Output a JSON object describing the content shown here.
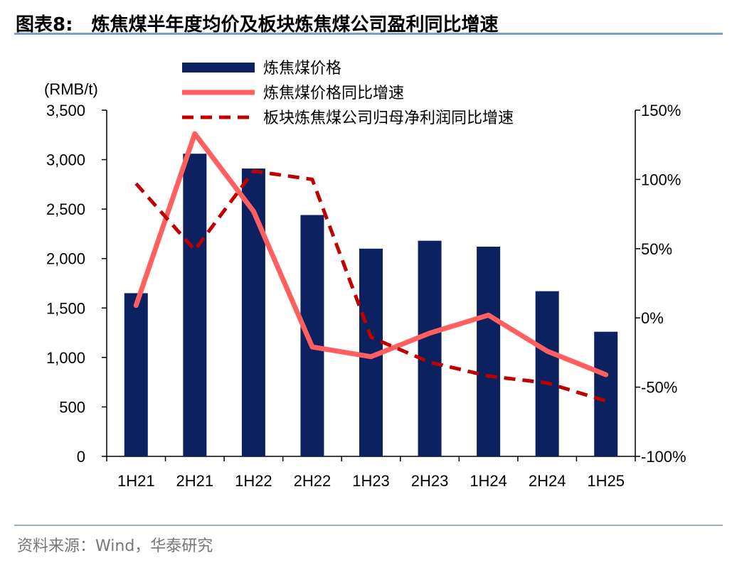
{
  "header": {
    "figure_no": "图表8:",
    "title": "炼焦煤半年度均价及板块炼焦煤公司盈利同比增速"
  },
  "footer": {
    "source": "资料来源：Wind，华泰研究"
  },
  "colors": {
    "bar": "#0b2160",
    "price_yoy": "#ff5f5f",
    "profit_yoy": "#c00000",
    "rule": "#7f9ec4"
  },
  "chart_data": {
    "type": "bar",
    "categories": [
      "1H21",
      "2H21",
      "1H22",
      "2H22",
      "1H23",
      "2H23",
      "1H24",
      "2H24",
      "1H25"
    ],
    "left_axis": {
      "label": "(RMB/t)",
      "ylim": [
        0,
        3500
      ],
      "ticks": [
        "0",
        "500",
        "1,000",
        "1,500",
        "2,000",
        "2,500",
        "3,000",
        "3,500"
      ],
      "tick_values": [
        0,
        500,
        1000,
        1500,
        2000,
        2500,
        3000,
        3500
      ]
    },
    "right_axis": {
      "ylim": [
        -100,
        150
      ],
      "ticks": [
        "-100%",
        "-50%",
        "0%",
        "50%",
        "100%",
        "150%"
      ],
      "tick_values": [
        -100,
        -50,
        0,
        50,
        100,
        150
      ]
    },
    "series": [
      {
        "name": "炼焦煤价格",
        "kind": "bar",
        "axis": "left",
        "values": [
          1650,
          3060,
          2910,
          2440,
          2100,
          2180,
          2120,
          1670,
          1260
        ]
      },
      {
        "name": "炼焦煤价格同比增速",
        "kind": "line",
        "axis": "right",
        "values": [
          9,
          133,
          77,
          -21,
          -28,
          -11,
          2,
          -24,
          -41
        ]
      },
      {
        "name": "板块炼焦煤公司归母净利润同比增速",
        "kind": "dashed-line",
        "axis": "right",
        "values": [
          97,
          49,
          106,
          100,
          -14,
          -32,
          -42,
          -47,
          -60
        ]
      }
    ],
    "grid": false,
    "legend_position": "top"
  }
}
